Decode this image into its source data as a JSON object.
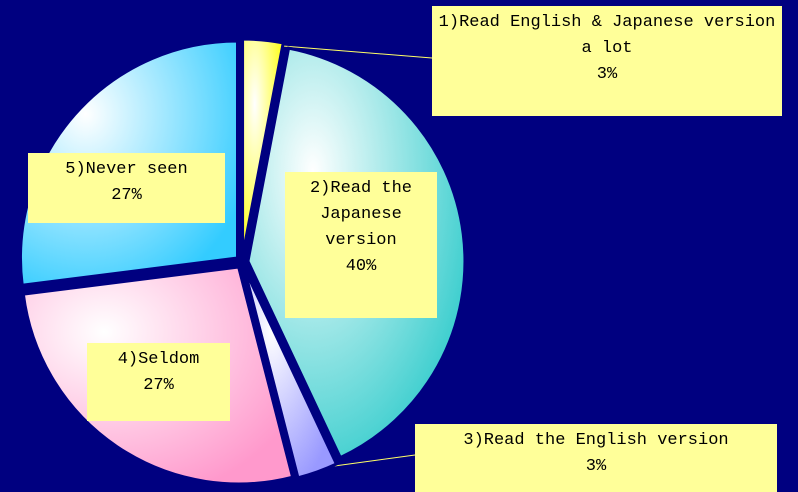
{
  "chart_data": {
    "type": "pie",
    "categories": [
      "1)Read English & Japanese version a lot",
      "2)Read the Japanese version",
      "3)Read the English version",
      "4)Seldom",
      "5)Never seen"
    ],
    "values": [
      3,
      40,
      3,
      27,
      27
    ],
    "value_labels": [
      "3%",
      "40%",
      "3%",
      "27%",
      "27%"
    ],
    "colors": [
      "#ffff00",
      "#33cccc",
      "#9999ff",
      "#ff99cc",
      "#33ccff"
    ]
  }
}
